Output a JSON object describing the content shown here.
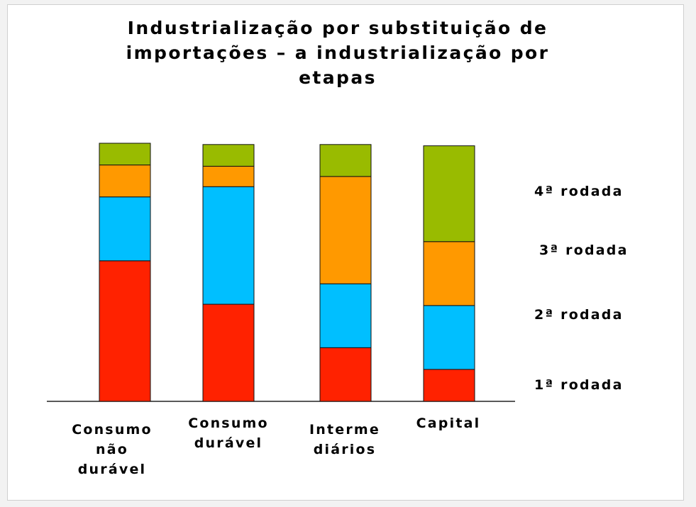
{
  "chart_data": {
    "type": "bar",
    "stacked": true,
    "title_lines": [
      "Industrialização por substituição de",
      "importações – a industrialização por",
      "etapas"
    ],
    "categories": [
      [
        "Consumo",
        "não",
        "durável"
      ],
      [
        "Consumo",
        "durável"
      ],
      [
        "Interme",
        "diários"
      ],
      [
        "Capital"
      ]
    ],
    "series": [
      {
        "name": "1ª rodada",
        "color": "#ff2200",
        "values": [
          55,
          38,
          21,
          12.5
        ]
      },
      {
        "name": "2ª rodada",
        "color": "#00bfff",
        "values": [
          25,
          46,
          25,
          25
        ]
      },
      {
        "name": "3ª rodada",
        "color": "#ff9900",
        "values": [
          12.5,
          8,
          42,
          25
        ]
      },
      {
        "name": "4ª rodada",
        "color": "#99bb00",
        "values": [
          8.5,
          8.5,
          12.5,
          37.5
        ]
      }
    ],
    "ylim": [
      0,
      101
    ],
    "grid": false,
    "legend": "right"
  }
}
